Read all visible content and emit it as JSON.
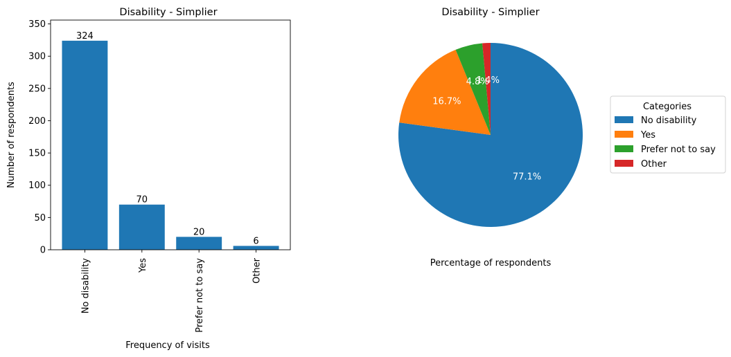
{
  "chart_data": [
    {
      "type": "bar",
      "title": "Disability - Simplier",
      "xlabel": "Frequency of visits",
      "ylabel": "Number of respondents",
      "categories": [
        "No disability",
        "Yes",
        "Prefer not to say",
        "Other"
      ],
      "values": [
        324,
        70,
        20,
        6
      ],
      "data_labels": [
        "324",
        "70",
        "20",
        "6"
      ],
      "ylim": [
        0,
        356
      ],
      "yticks": [
        0,
        50,
        100,
        150,
        200,
        250,
        300,
        350
      ],
      "color": "#1f77b4",
      "grid": false
    },
    {
      "type": "pie",
      "title": "Disability - Simplier",
      "xlabel": "Percentage of respondents",
      "categories": [
        "No disability",
        "Yes",
        "Prefer not to say",
        "Other"
      ],
      "values": [
        324,
        70,
        20,
        6
      ],
      "percent_labels": [
        "77.1%",
        "16.7%",
        "4.8%",
        "1.4%"
      ],
      "colors": [
        "#1f77b4",
        "#ff7f0e",
        "#2ca02c",
        "#d62728"
      ],
      "start_angle_deg": 90,
      "direction": "clockwise",
      "legend": {
        "title": "Categories",
        "placement": "right"
      }
    }
  ]
}
